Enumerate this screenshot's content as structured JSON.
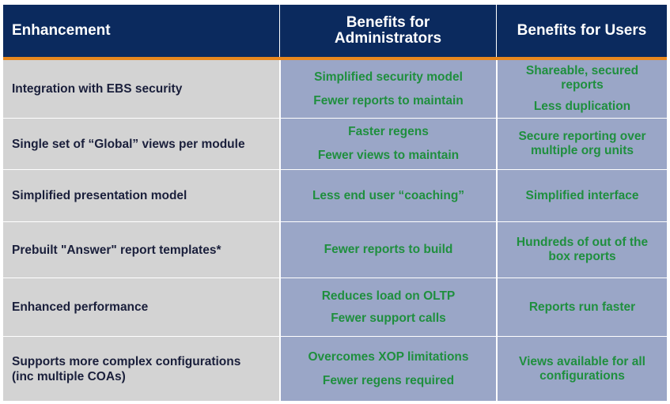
{
  "header": {
    "col1": "Enhancement",
    "col2_line1": "Benefits for",
    "col2_line2": "Administrators",
    "col3": "Benefits for Users"
  },
  "rows": [
    {
      "enhancement": "Integration with EBS security",
      "admin": [
        "Simplified security model",
        "Fewer reports to maintain"
      ],
      "users": [
        "Shareable, secured",
        "reports",
        "Less duplication"
      ]
    },
    {
      "enhancement": "Single set of “Global” views per module",
      "admin": [
        "Faster regens",
        "Fewer views to maintain"
      ],
      "users": [
        "Secure reporting over",
        "multiple org units"
      ]
    },
    {
      "enhancement": "Simplified presentation model",
      "admin": [
        "Less end user “coaching”"
      ],
      "users": [
        "Simplified interface"
      ]
    },
    {
      "enhancement": "Prebuilt \"Answer\" report templates*",
      "admin": [
        "Fewer reports to build"
      ],
      "users": [
        "Hundreds of out of the",
        "box reports"
      ]
    },
    {
      "enhancement": "Enhanced performance",
      "admin": [
        "Reduces load on OLTP",
        "Fewer support calls"
      ],
      "users": [
        "Reports run faster"
      ]
    },
    {
      "enhancement_line1": "Supports more complex configurations",
      "enhancement_line2": "(inc multiple COAs)",
      "admin": [
        "Overcomes XOP limitations",
        "Fewer regens required"
      ],
      "users": [
        "Views available for all",
        "configurations"
      ]
    }
  ],
  "colors": {
    "header_bg": "#0b2a5e",
    "accent_bar": "#e8881e",
    "enhancement_bg": "#d3d3d3",
    "benefit_bg": "#9aa6c7",
    "benefit_text": "#1f8f3e",
    "enhancement_text": "#1a1f3b"
  }
}
